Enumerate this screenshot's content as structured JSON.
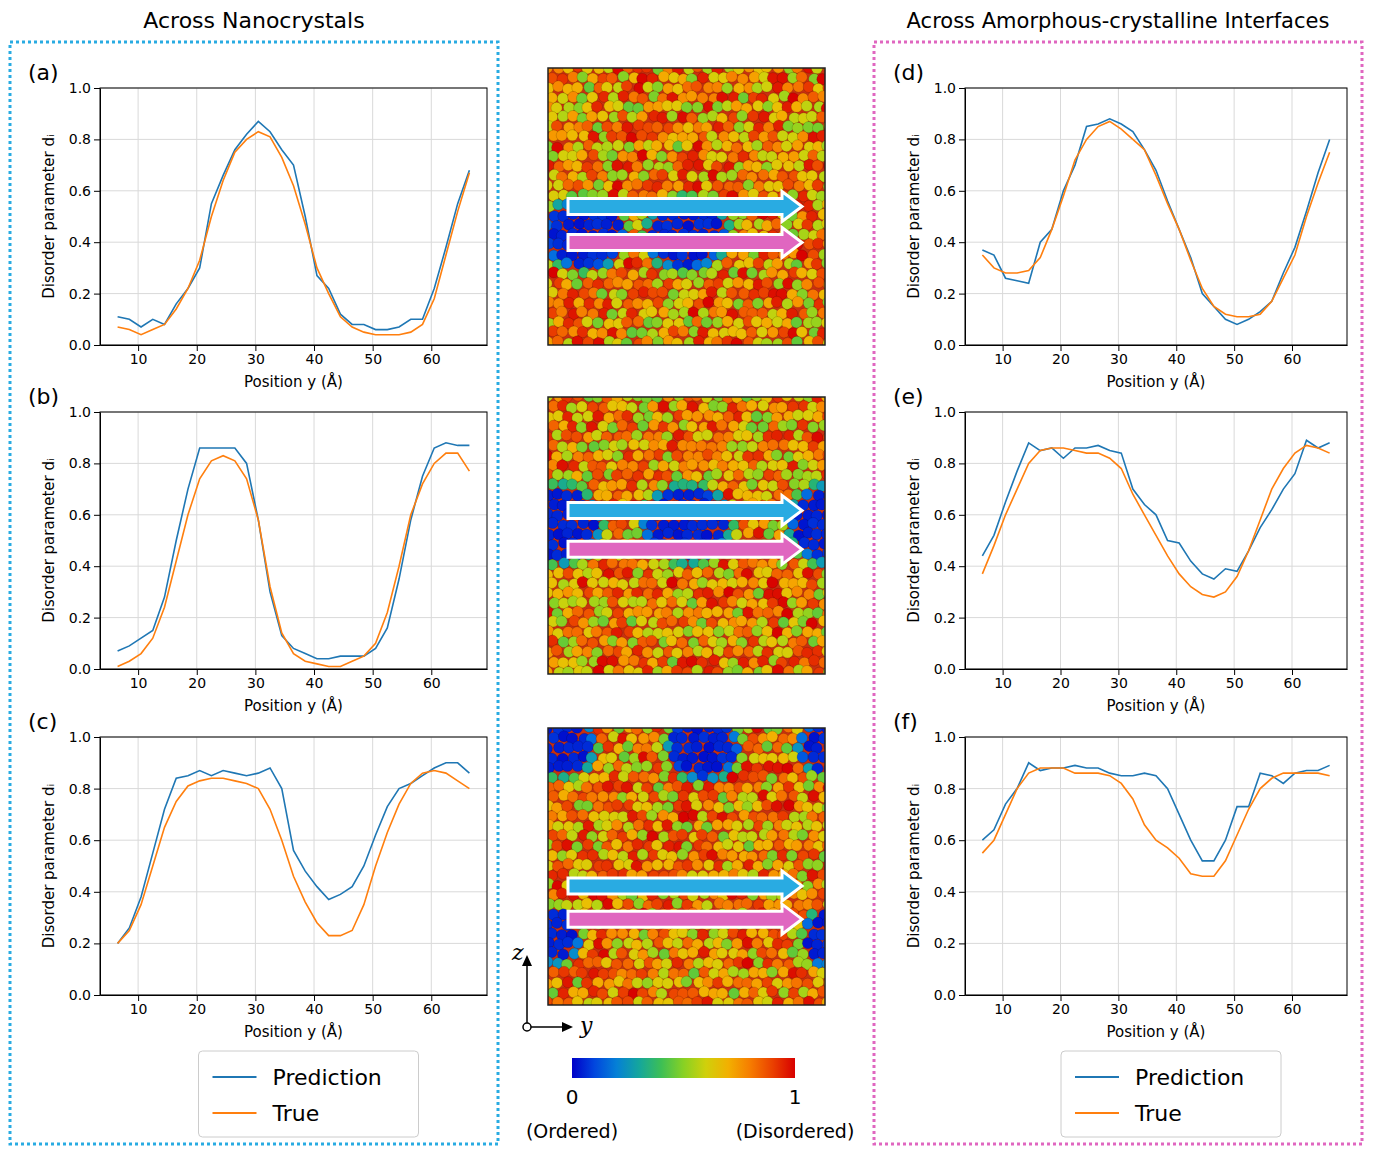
{
  "figure": {
    "left_title": "Across Nanocrystals",
    "right_title": "Across Amorphous-crystalline Interfaces",
    "axes": {
      "vertical": "z",
      "horizontal": "y"
    },
    "colorbar": {
      "range": [
        0,
        1
      ],
      "ticks": [
        0,
        1
      ],
      "tick_captions": [
        "(Ordered)",
        "(Disordered)"
      ]
    }
  },
  "chart_data": [
    {
      "type": "line",
      "title": "(a)",
      "x_label": "Position y (Å)",
      "y_label": "Disorder parameter dᵢ",
      "grid": true,
      "x": [
        6.5,
        8.5,
        10.5,
        12.5,
        14.5,
        16.5,
        18.5,
        20.5,
        22.5,
        24.5,
        26.5,
        28.5,
        30.5,
        32.5,
        34.5,
        36.5,
        38.5,
        40.5,
        42.5,
        44.5,
        46.5,
        48.5,
        50.5,
        52.5,
        54.5,
        56.5,
        58.5,
        60.5,
        62.5,
        64.5,
        66.5
      ],
      "xlim": [
        3.5,
        69.5
      ],
      "ylim": [
        0,
        1
      ],
      "xticks": [
        10,
        20,
        30,
        40,
        50,
        60
      ],
      "yticks": [
        {
          "value": 0,
          "label": "0.0"
        },
        {
          "value": 0.2,
          "label": "0.2"
        },
        {
          "value": 0.4,
          "label": "0.4"
        },
        {
          "value": 0.6,
          "label": "0.6"
        },
        {
          "value": 0.8,
          "label": "0.8"
        },
        {
          "value": 1,
          "label": "1.0"
        }
      ],
      "series": [
        {
          "name": "Prediction",
          "color": "#1f77b4",
          "values": [
            0.11,
            0.1,
            0.07,
            0.1,
            0.08,
            0.16,
            0.22,
            0.3,
            0.55,
            0.66,
            0.76,
            0.82,
            0.87,
            0.83,
            0.76,
            0.7,
            0.5,
            0.27,
            0.22,
            0.12,
            0.08,
            0.08,
            0.06,
            0.06,
            0.07,
            0.1,
            0.1,
            0.22,
            0.38,
            0.55,
            0.68
          ]
        },
        {
          "name": "True",
          "color": "#ff7f0e",
          "values": [
            0.07,
            0.06,
            0.04,
            0.06,
            0.08,
            0.14,
            0.22,
            0.33,
            0.5,
            0.64,
            0.75,
            0.8,
            0.83,
            0.81,
            0.73,
            0.62,
            0.47,
            0.3,
            0.2,
            0.11,
            0.07,
            0.05,
            0.04,
            0.04,
            0.04,
            0.05,
            0.08,
            0.18,
            0.35,
            0.52,
            0.67
          ]
        }
      ]
    },
    {
      "type": "line",
      "title": "(b)",
      "x_label": "Position y (Å)",
      "y_label": "Disorder parameter dᵢ",
      "grid": true,
      "x": [
        6.5,
        8.5,
        10.5,
        12.5,
        14.5,
        16.5,
        18.5,
        20.5,
        22.5,
        24.5,
        26.5,
        28.5,
        30.5,
        32.5,
        34.5,
        36.5,
        38.5,
        40.5,
        42.5,
        44.5,
        46.5,
        48.5,
        50.5,
        52.5,
        54.5,
        56.5,
        58.5,
        60.5,
        62.5,
        64.5,
        66.5
      ],
      "xlim": [
        3.5,
        69.5
      ],
      "ylim": [
        0,
        1
      ],
      "xticks": [
        10,
        20,
        30,
        40,
        50,
        60
      ],
      "yticks": [
        {
          "value": 0,
          "label": "0.0"
        },
        {
          "value": 0.2,
          "label": "0.2"
        },
        {
          "value": 0.4,
          "label": "0.4"
        },
        {
          "value": 0.6,
          "label": "0.6"
        },
        {
          "value": 0.8,
          "label": "0.8"
        },
        {
          "value": 1,
          "label": "1.0"
        }
      ],
      "series": [
        {
          "name": "Prediction",
          "color": "#1f77b4",
          "values": [
            0.07,
            0.09,
            0.12,
            0.15,
            0.28,
            0.5,
            0.7,
            0.86,
            0.86,
            0.86,
            0.86,
            0.8,
            0.58,
            0.3,
            0.13,
            0.08,
            0.06,
            0.04,
            0.04,
            0.05,
            0.05,
            0.05,
            0.08,
            0.16,
            0.35,
            0.58,
            0.75,
            0.86,
            0.88,
            0.87,
            0.87
          ]
        },
        {
          "name": "True",
          "color": "#ff7f0e",
          "values": [
            0.01,
            0.03,
            0.06,
            0.12,
            0.24,
            0.42,
            0.6,
            0.74,
            0.81,
            0.83,
            0.81,
            0.74,
            0.58,
            0.32,
            0.14,
            0.06,
            0.03,
            0.02,
            0.01,
            0.01,
            0.03,
            0.05,
            0.1,
            0.22,
            0.4,
            0.6,
            0.72,
            0.8,
            0.84,
            0.84,
            0.77
          ]
        }
      ]
    },
    {
      "type": "line",
      "title": "(c)",
      "x_label": "Position y (Å)",
      "y_label": "Disorder parameter dᵢ",
      "grid": true,
      "legend": "below",
      "x": [
        6.5,
        8.5,
        10.5,
        12.5,
        14.5,
        16.5,
        18.5,
        20.5,
        22.5,
        24.5,
        26.5,
        28.5,
        30.5,
        32.5,
        34.5,
        36.5,
        38.5,
        40.5,
        42.5,
        44.5,
        46.5,
        48.5,
        50.5,
        52.5,
        54.5,
        56.5,
        58.5,
        60.5,
        62.5,
        64.5,
        66.5
      ],
      "xlim": [
        3.5,
        69.5
      ],
      "ylim": [
        0,
        1
      ],
      "xticks": [
        10,
        20,
        30,
        40,
        50,
        60
      ],
      "yticks": [
        {
          "value": 0,
          "label": "0.0"
        },
        {
          "value": 0.2,
          "label": "0.2"
        },
        {
          "value": 0.4,
          "label": "0.4"
        },
        {
          "value": 0.6,
          "label": "0.6"
        },
        {
          "value": 0.8,
          "label": "0.8"
        },
        {
          "value": 1,
          "label": "1.0"
        }
      ],
      "series": [
        {
          "name": "Prediction",
          "color": "#1f77b4",
          "values": [
            0.2,
            0.26,
            0.38,
            0.55,
            0.72,
            0.84,
            0.85,
            0.87,
            0.85,
            0.87,
            0.86,
            0.85,
            0.86,
            0.88,
            0.8,
            0.56,
            0.48,
            0.42,
            0.37,
            0.39,
            0.42,
            0.5,
            0.62,
            0.73,
            0.8,
            0.82,
            0.85,
            0.88,
            0.9,
            0.9,
            0.86
          ]
        },
        {
          "name": "True",
          "color": "#ff7f0e",
          "values": [
            0.2,
            0.25,
            0.35,
            0.5,
            0.65,
            0.75,
            0.81,
            0.83,
            0.84,
            0.84,
            0.83,
            0.82,
            0.8,
            0.72,
            0.6,
            0.46,
            0.36,
            0.28,
            0.23,
            0.23,
            0.25,
            0.35,
            0.5,
            0.63,
            0.74,
            0.82,
            0.86,
            0.87,
            0.86,
            0.83,
            0.8
          ]
        }
      ]
    },
    {
      "type": "line",
      "title": "(d)",
      "x_label": "Position y (Å)",
      "y_label": "Disorder parameter dᵢ",
      "grid": true,
      "x": [
        6.5,
        8.5,
        10.5,
        12.5,
        14.5,
        16.5,
        18.5,
        20.5,
        22.5,
        24.5,
        26.5,
        28.5,
        30.5,
        32.5,
        34.5,
        36.5,
        38.5,
        40.5,
        42.5,
        44.5,
        46.5,
        48.5,
        50.5,
        52.5,
        54.5,
        56.5,
        58.5,
        60.5,
        62.5,
        64.5,
        66.5
      ],
      "xlim": [
        3.5,
        69.5
      ],
      "ylim": [
        0,
        1
      ],
      "xticks": [
        10,
        20,
        30,
        40,
        50,
        60
      ],
      "yticks": [
        {
          "value": 0,
          "label": "0.0"
        },
        {
          "value": 0.2,
          "label": "0.2"
        },
        {
          "value": 0.4,
          "label": "0.4"
        },
        {
          "value": 0.6,
          "label": "0.6"
        },
        {
          "value": 0.8,
          "label": "0.8"
        },
        {
          "value": 1,
          "label": "1.0"
        }
      ],
      "series": [
        {
          "name": "Prediction",
          "color": "#1f77b4",
          "values": [
            0.37,
            0.35,
            0.26,
            0.25,
            0.24,
            0.4,
            0.45,
            0.6,
            0.7,
            0.85,
            0.86,
            0.88,
            0.86,
            0.83,
            0.76,
            0.68,
            0.56,
            0.45,
            0.34,
            0.2,
            0.15,
            0.1,
            0.08,
            0.1,
            0.13,
            0.17,
            0.28,
            0.38,
            0.52,
            0.67,
            0.8
          ]
        },
        {
          "name": "True",
          "color": "#ff7f0e",
          "values": [
            0.35,
            0.3,
            0.28,
            0.28,
            0.29,
            0.34,
            0.45,
            0.58,
            0.72,
            0.8,
            0.85,
            0.87,
            0.84,
            0.8,
            0.76,
            0.66,
            0.55,
            0.45,
            0.33,
            0.22,
            0.15,
            0.12,
            0.11,
            0.11,
            0.12,
            0.17,
            0.26,
            0.35,
            0.5,
            0.63,
            0.75
          ]
        }
      ]
    },
    {
      "type": "line",
      "title": "(e)",
      "x_label": "Position y (Å)",
      "y_label": "Disorder parameter dᵢ",
      "grid": true,
      "x": [
        6.5,
        8.5,
        10.5,
        12.5,
        14.5,
        16.5,
        18.5,
        20.5,
        22.5,
        24.5,
        26.5,
        28.5,
        30.5,
        32.5,
        34.5,
        36.5,
        38.5,
        40.5,
        42.5,
        44.5,
        46.5,
        48.5,
        50.5,
        52.5,
        54.5,
        56.5,
        58.5,
        60.5,
        62.5,
        64.5,
        66.5
      ],
      "xlim": [
        3.5,
        69.5
      ],
      "ylim": [
        0,
        1
      ],
      "xticks": [
        10,
        20,
        30,
        40,
        50,
        60
      ],
      "yticks": [
        {
          "value": 0,
          "label": "0.0"
        },
        {
          "value": 0.2,
          "label": "0.2"
        },
        {
          "value": 0.4,
          "label": "0.4"
        },
        {
          "value": 0.6,
          "label": "0.6"
        },
        {
          "value": 0.8,
          "label": "0.8"
        },
        {
          "value": 1,
          "label": "1.0"
        }
      ],
      "series": [
        {
          "name": "Prediction",
          "color": "#1f77b4",
          "values": [
            0.44,
            0.52,
            0.65,
            0.77,
            0.88,
            0.85,
            0.86,
            0.82,
            0.86,
            0.86,
            0.87,
            0.85,
            0.84,
            0.7,
            0.64,
            0.6,
            0.5,
            0.49,
            0.42,
            0.37,
            0.35,
            0.39,
            0.38,
            0.46,
            0.55,
            0.62,
            0.7,
            0.76,
            0.89,
            0.86,
            0.88
          ]
        },
        {
          "name": "True",
          "color": "#ff7f0e",
          "values": [
            0.37,
            0.48,
            0.6,
            0.7,
            0.8,
            0.85,
            0.86,
            0.86,
            0.85,
            0.84,
            0.84,
            0.82,
            0.78,
            0.68,
            0.6,
            0.52,
            0.44,
            0.37,
            0.32,
            0.29,
            0.28,
            0.3,
            0.36,
            0.46,
            0.58,
            0.7,
            0.78,
            0.84,
            0.87,
            0.86,
            0.84
          ]
        }
      ]
    },
    {
      "type": "line",
      "title": "(f)",
      "x_label": "Position y (Å)",
      "y_label": "Disorder parameter dᵢ",
      "grid": true,
      "legend": "below",
      "x": [
        6.5,
        8.5,
        10.5,
        12.5,
        14.5,
        16.5,
        18.5,
        20.5,
        22.5,
        24.5,
        26.5,
        28.5,
        30.5,
        32.5,
        34.5,
        36.5,
        38.5,
        40.5,
        42.5,
        44.5,
        46.5,
        48.5,
        50.5,
        52.5,
        54.5,
        56.5,
        58.5,
        60.5,
        62.5,
        64.5,
        66.5
      ],
      "xlim": [
        3.5,
        69.5
      ],
      "ylim": [
        0,
        1
      ],
      "xticks": [
        10,
        20,
        30,
        40,
        50,
        60
      ],
      "yticks": [
        {
          "value": 0,
          "label": "0.0"
        },
        {
          "value": 0.2,
          "label": "0.2"
        },
        {
          "value": 0.4,
          "label": "0.4"
        },
        {
          "value": 0.6,
          "label": "0.6"
        },
        {
          "value": 0.8,
          "label": "0.8"
        },
        {
          "value": 1,
          "label": "1.0"
        }
      ],
      "series": [
        {
          "name": "Prediction",
          "color": "#1f77b4",
          "values": [
            0.6,
            0.64,
            0.74,
            0.8,
            0.9,
            0.87,
            0.88,
            0.88,
            0.89,
            0.88,
            0.88,
            0.86,
            0.85,
            0.85,
            0.86,
            0.85,
            0.8,
            0.7,
            0.6,
            0.52,
            0.52,
            0.6,
            0.73,
            0.73,
            0.86,
            0.85,
            0.82,
            0.86,
            0.87,
            0.87,
            0.89
          ]
        },
        {
          "name": "True",
          "color": "#ff7f0e",
          "values": [
            0.55,
            0.6,
            0.7,
            0.8,
            0.86,
            0.88,
            0.88,
            0.88,
            0.86,
            0.86,
            0.86,
            0.85,
            0.82,
            0.76,
            0.66,
            0.6,
            0.57,
            0.53,
            0.47,
            0.46,
            0.46,
            0.52,
            0.62,
            0.72,
            0.8,
            0.84,
            0.86,
            0.86,
            0.86,
            0.86,
            0.85
          ]
        }
      ]
    }
  ]
}
